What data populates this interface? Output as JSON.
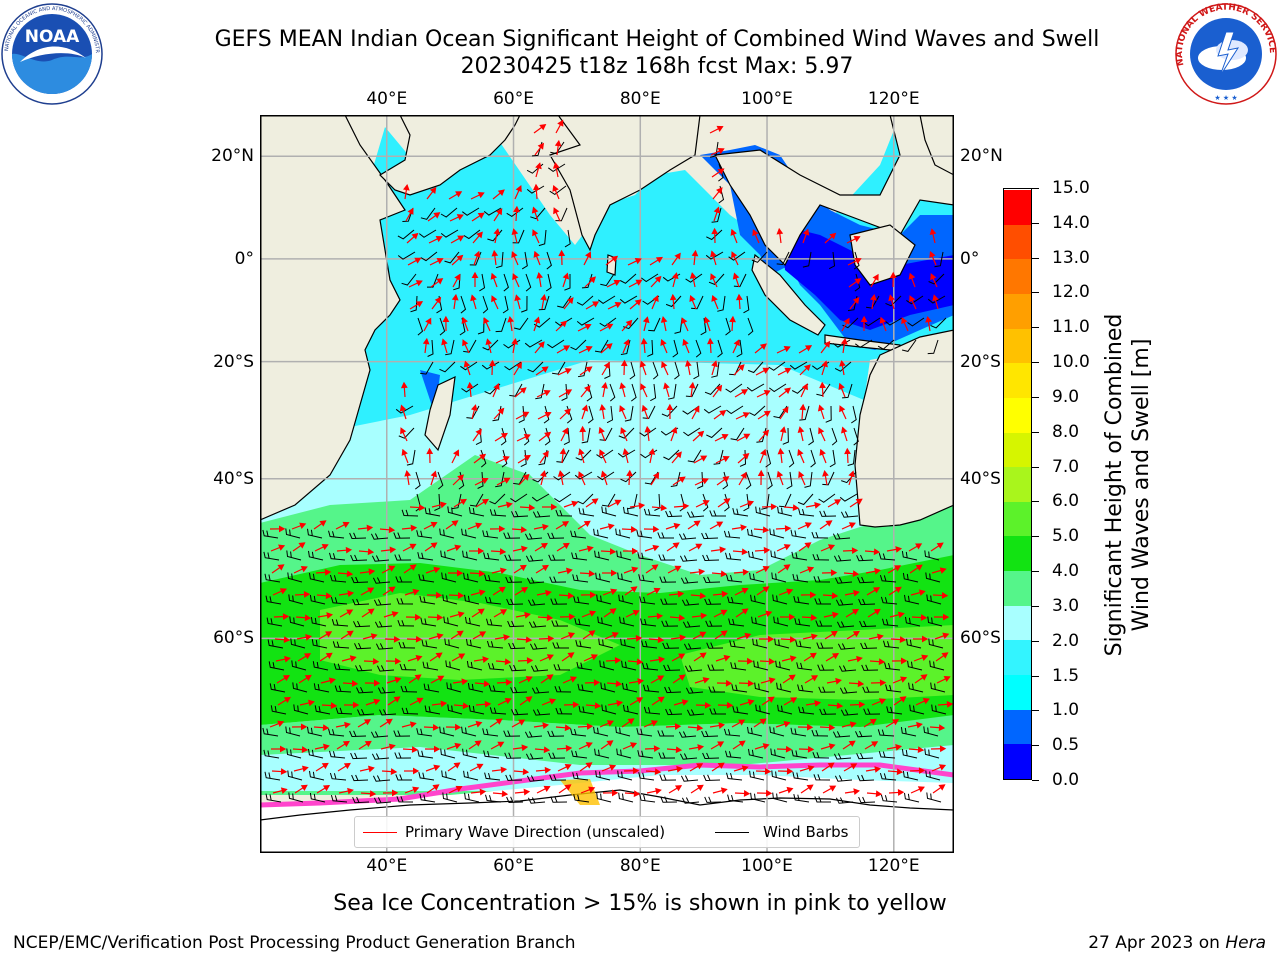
{
  "header": {
    "title_line1": "GEFS MEAN Indian Ocean Significant Height of Combined Wind Waves and Swell",
    "title_line2": "20230425 t18z 168h fcst   Max: 5.97"
  },
  "logos": {
    "noaa_text": "NOAA",
    "noaa_ring": "NATIONAL OCEANIC AND ATMOSPHERIC ADMINISTRATION · U.S. DEPARTMENT OF COMMERCE",
    "nws_ring": "NATIONAL WEATHER SERVICE"
  },
  "map": {
    "lon_labels": [
      "40°E",
      "60°E",
      "80°E",
      "100°E",
      "120°E"
    ],
    "lat_labels": [
      "20°N",
      "0°",
      "20°S",
      "40°S",
      "60°S"
    ],
    "lon_values": [
      40,
      60,
      80,
      100,
      120
    ],
    "lat_values": [
      20,
      0,
      -20,
      -40,
      -60
    ],
    "lon_range": [
      20,
      129.5
    ],
    "lat_range": [
      -75.5,
      27.5
    ],
    "grid": true,
    "colors": {
      "land": "#efeedf",
      "coast": "#000000",
      "grid": "#b0b0b0",
      "wave_direction": "#ff0000",
      "wind_barbs": "#000000"
    }
  },
  "legend": {
    "wave_label": "Primary Wave Direction (unscaled)",
    "wind_label": "Wind Barbs"
  },
  "colorbar": {
    "title_line1": "Significant Height of Combined",
    "title_line2": "Wind Waves and Swell [m]",
    "tick_labels": [
      "0.0",
      "0.5",
      "1.0",
      "1.5",
      "2.0",
      "3.0",
      "4.0",
      "5.0",
      "6.0",
      "7.0",
      "8.0",
      "9.0",
      "10.0",
      "11.0",
      "12.0",
      "13.0",
      "14.0",
      "15.0"
    ],
    "colors": [
      "#0000ff",
      "#0066ff",
      "#00ffff",
      "#33f4ff",
      "#a8ffff",
      "#55f58a",
      "#12e312",
      "#5cf22a",
      "#a9f51c",
      "#d6f500",
      "#ffff00",
      "#ffe600",
      "#ffc100",
      "#ff9f00",
      "#ff7700",
      "#ff4e00",
      "#ff0000"
    ]
  },
  "footer": {
    "sea_ice_note": "Sea Ice Concentration > 15% is shown in pink to yellow",
    "credit": "NCEP/EMC/Verification Post Processing Product Generation Branch",
    "date_prefix": "27 Apr 2023 on ",
    "host": "Hera"
  }
}
